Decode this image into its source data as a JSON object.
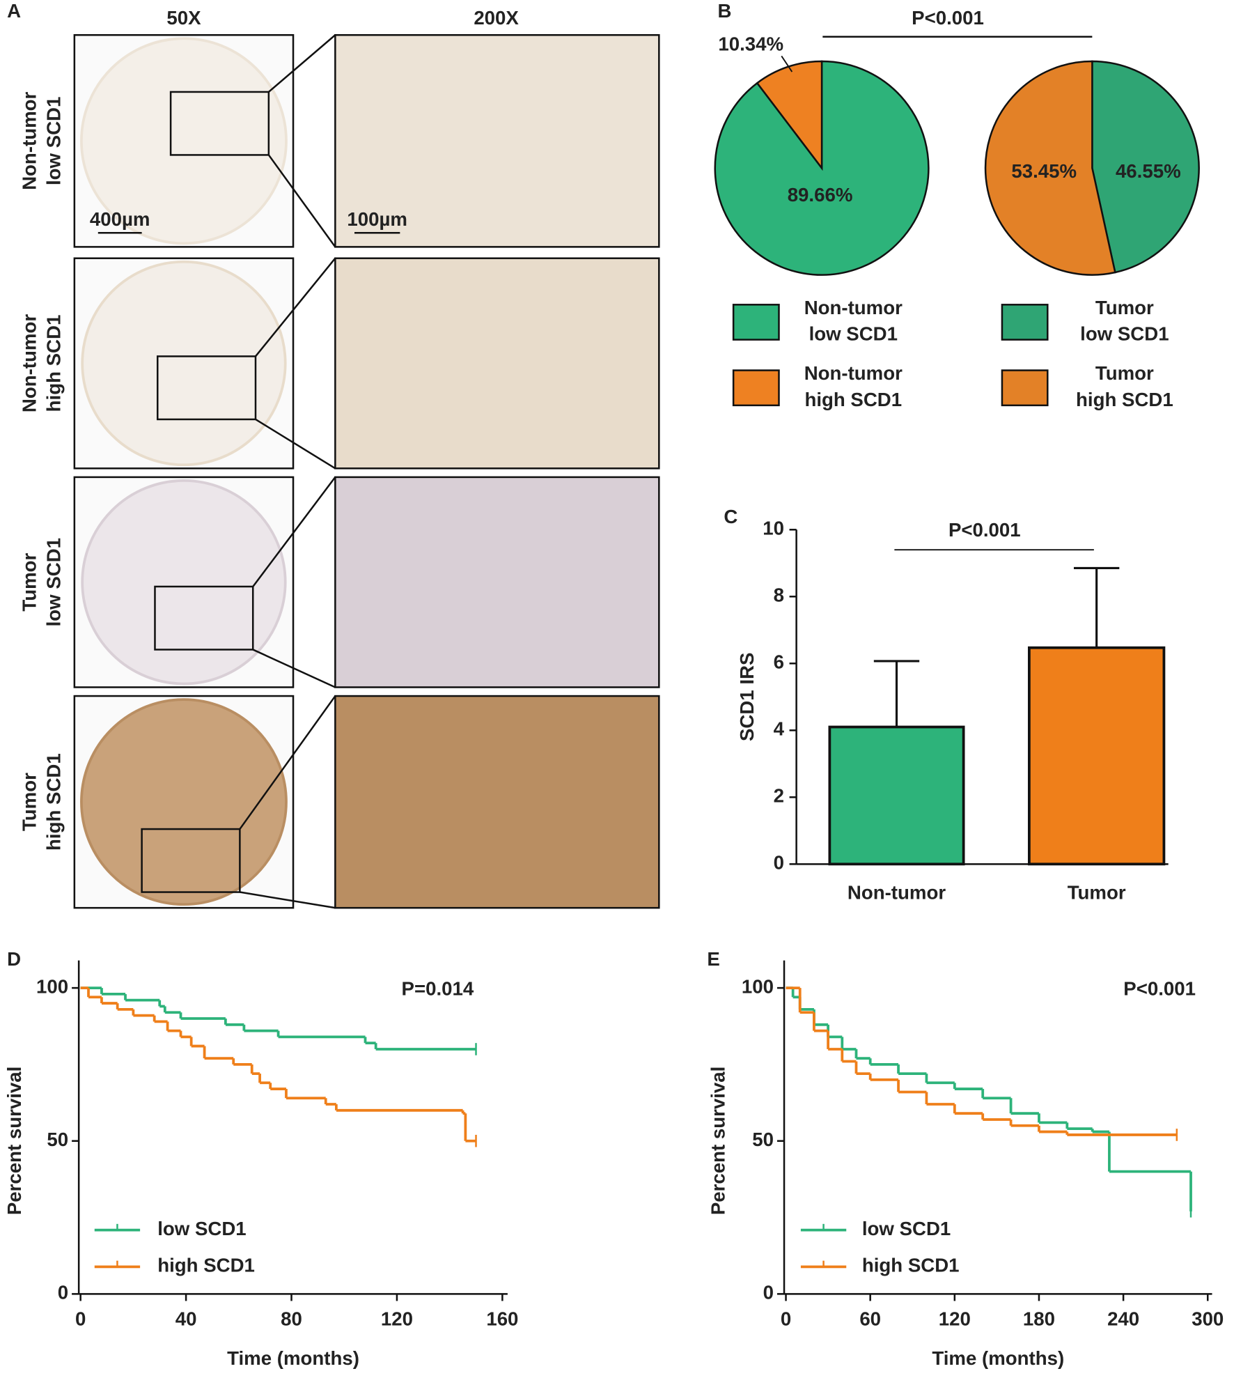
{
  "panel_a": {
    "label": "A",
    "columns": [
      "50X",
      "200X"
    ],
    "rows": [
      [
        "Non-tumor",
        "low SCD1"
      ],
      [
        "Non-tumor",
        "high SCD1"
      ],
      [
        "Tumor",
        "low SCD1"
      ],
      [
        "Tumor",
        "high SCD1"
      ]
    ],
    "scale_bars": [
      "400µm",
      "100µm"
    ]
  },
  "chart_data": [
    {
      "type": "pie",
      "panel": "B",
      "annotation": "P<0.001",
      "pies": [
        {
          "categories": [
            [
              "Non-tumor",
              "low SCD1"
            ],
            [
              "Non-tumor",
              "high SCD1"
            ]
          ],
          "values": [
            89.66,
            10.34
          ],
          "value_labels": [
            "89.66%",
            "10.34%"
          ],
          "colors": [
            "#2db37a",
            "#ee8122"
          ]
        },
        {
          "categories": [
            [
              "Tumor",
              "low SCD1"
            ],
            [
              "Tumor",
              "high SCD1"
            ]
          ],
          "values": [
            46.55,
            53.45
          ],
          "value_labels": [
            "46.55%",
            "53.45%"
          ],
          "colors": [
            "#2fa574",
            "#e38127"
          ]
        }
      ]
    },
    {
      "type": "bar",
      "panel": "C",
      "y_label": "SCD1 IRS",
      "annotation": "P<0.001",
      "categories": [
        "Non-tumor",
        "Tumor"
      ],
      "values": [
        4.1,
        6.47
      ],
      "errors": [
        1.97,
        2.38
      ],
      "colors": [
        "#2db37a",
        "#ef7f1a"
      ],
      "ylim": [
        0,
        10
      ],
      "yticks": [
        0,
        2,
        4,
        6,
        8,
        10
      ]
    },
    {
      "type": "survival",
      "panel": "D",
      "annotation": "P=0.014",
      "x_label": "Time (months)",
      "y_label": "Percent survival",
      "xlim": [
        0,
        160
      ],
      "xticks": [
        0,
        40,
        80,
        120,
        160
      ],
      "ylim": [
        0,
        109
      ],
      "yticks": [
        0,
        50,
        100
      ],
      "series": [
        {
          "name": "low SCD1",
          "color": "#2db37a",
          "x": [
            0,
            8,
            17,
            30,
            32,
            38,
            55,
            62,
            75,
            108,
            112,
            150
          ],
          "values": [
            100,
            98,
            96,
            94,
            92,
            90,
            88,
            86,
            84,
            82,
            80,
            80
          ]
        },
        {
          "name": "high SCD1",
          "color": "#ef7f1a",
          "x": [
            0,
            3,
            8,
            14,
            20,
            28,
            33,
            38,
            42,
            47,
            58,
            65,
            68,
            72,
            78,
            93,
            97,
            145,
            146,
            150
          ],
          "values": [
            100,
            97,
            95,
            93,
            91,
            89,
            86,
            84,
            81,
            77,
            75,
            72,
            69,
            67,
            64,
            62,
            60,
            59,
            50,
            50
          ]
        }
      ]
    },
    {
      "type": "survival",
      "panel": "E",
      "annotation": "P<0.001",
      "x_label": "Time (months)",
      "y_label": "Percent survival",
      "xlim": [
        0,
        300
      ],
      "xticks": [
        0,
        60,
        120,
        180,
        240,
        300
      ],
      "ylim": [
        0,
        109
      ],
      "yticks": [
        0,
        50,
        100
      ],
      "series": [
        {
          "name": "low SCD1",
          "color": "#2db37a",
          "x": [
            0,
            5,
            10,
            20,
            30,
            40,
            50,
            60,
            80,
            100,
            120,
            140,
            160,
            180,
            200,
            218,
            230,
            288
          ],
          "values": [
            100,
            97,
            93,
            88,
            84,
            80,
            77,
            75,
            72,
            69,
            67,
            64,
            59,
            56,
            54,
            53,
            40,
            27
          ]
        },
        {
          "name": "high SCD1",
          "color": "#ef7f1a",
          "x": [
            0,
            10,
            20,
            30,
            40,
            50,
            60,
            80,
            100,
            120,
            140,
            160,
            180,
            200,
            278
          ],
          "values": [
            100,
            92,
            86,
            80,
            76,
            72,
            70,
            66,
            62,
            59,
            57,
            55,
            53,
            52,
            52
          ]
        }
      ]
    }
  ]
}
